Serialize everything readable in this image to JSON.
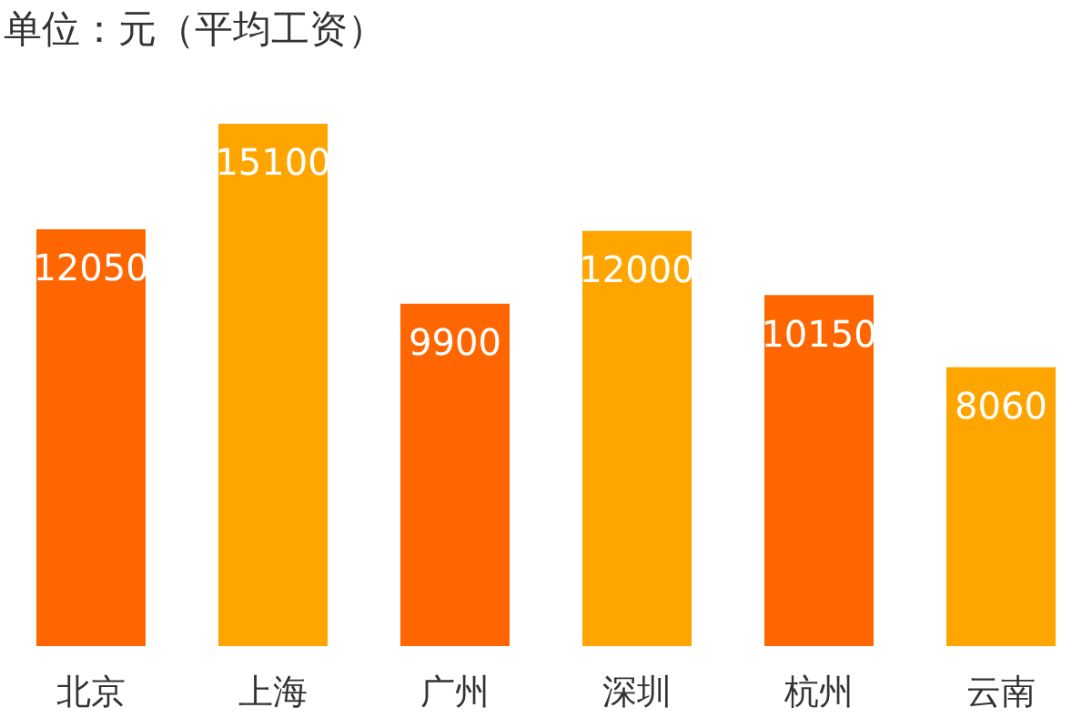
{
  "chart_data": {
    "type": "bar",
    "title": "单位：元（平均工资）",
    "categories": [
      "北京",
      "上海",
      "广州",
      "深圳",
      "杭州",
      "云南"
    ],
    "values": [
      12050,
      15100,
      9900,
      12000,
      10150,
      8060
    ],
    "colors": [
      "#ff6600",
      "#ffa500",
      "#ff6600",
      "#ffa500",
      "#ff6600",
      "#ffa500"
    ],
    "data_labels": true,
    "grid": false,
    "legend": false
  }
}
